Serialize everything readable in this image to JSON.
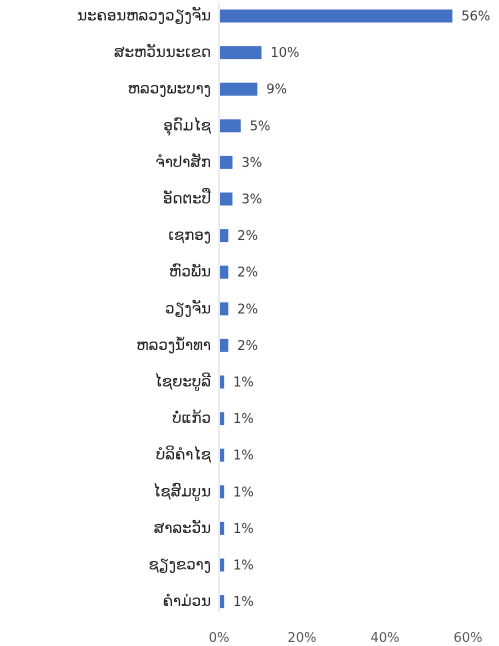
{
  "chart_data": {
    "type": "bar",
    "orientation": "horizontal",
    "categories": [
      "ນະຄອນຫລວງວຽງຈັນ",
      "ສະຫວັນນະເຂດ",
      "ຫລວງພະບາງ",
      "ອຸດົມໄຊ",
      "ຈຳປາສັກ",
      "ອັດຕະປື",
      "ເຊກອງ",
      "ຫົວພັນ",
      "ວຽງຈັນ",
      "ຫລວງນ້ຳທາ",
      "ໄຊຍະບູລີ",
      "ບໍ່ແກ້ວ",
      "ບໍລິຄຳໄຊ",
      "ໄຊສົມບູນ",
      "ສາລະວັນ",
      "ຊຽງຂວາງ",
      "ຄຳມ່ວນ"
    ],
    "values": [
      56,
      10,
      9,
      5,
      3,
      3,
      2,
      2,
      2,
      2,
      1,
      1,
      1,
      1,
      1,
      1,
      1
    ],
    "value_labels": [
      "56%",
      "10%",
      "9%",
      "5%",
      "3%",
      "3%",
      "2%",
      "2%",
      "2%",
      "2%",
      "1%",
      "1%",
      "1%",
      "1%",
      "1%",
      "1%",
      "1%"
    ],
    "xlim": [
      0,
      60
    ],
    "x_ticks": [
      0,
      20,
      40,
      60
    ],
    "x_tick_labels": [
      "0%",
      "20%",
      "40%",
      "60%"
    ],
    "title": "",
    "xlabel": "",
    "ylabel": "",
    "grid": false,
    "bar_color": "#4472C4"
  }
}
